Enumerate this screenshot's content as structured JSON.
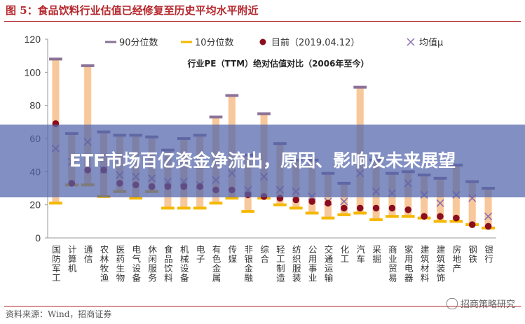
{
  "figure": {
    "title": "图 5：食品饮料行业估值已经修复至历史平均水平附近",
    "source": "资料来源：Wind，招商证券",
    "watermark": "招商策略研究"
  },
  "banner": {
    "text": "ETF市场百亿资金净流出，原因、影响及未来展望"
  },
  "chart_data": {
    "type": "range-dot",
    "title": "行业PE（TTM）绝对估值对比（2006年至今）",
    "ylim": [
      0,
      120
    ],
    "yticks": [
      0,
      20,
      40,
      60,
      80,
      100,
      120
    ],
    "legend_position": "top",
    "legend": [
      "90分位数",
      "10分位数",
      "目前（2019.04.12）",
      "均值μ"
    ],
    "colors": {
      "p90": "#8a7196",
      "p10": "#f5b800",
      "bar": "#f8c89a",
      "current": "#8b0d1e",
      "mean": "#8a6fb0"
    },
    "categories": [
      "国防军工",
      "计算机",
      "通信",
      "农林牧渔",
      "医药生物",
      "电气设备",
      "休闲服务",
      "食品饮料",
      "机械设备",
      "电子",
      "有色金属",
      "传媒",
      "非银金融",
      "综合",
      "轻工制造",
      "纺织服装",
      "公用事业",
      "交通运输",
      "化工",
      "汽车",
      "采掘",
      "商业贸易",
      "家用电器",
      "建筑材料",
      "建筑装饰",
      "房地产",
      "钢铁",
      "银行"
    ],
    "p90": [
      108,
      63,
      104,
      64,
      62,
      62,
      61,
      53,
      60,
      62,
      73,
      86,
      50,
      75,
      57,
      47,
      47,
      39,
      33,
      91,
      47,
      39,
      40,
      38,
      36,
      44,
      34,
      30
    ],
    "p10": [
      21,
      32,
      32,
      25,
      28,
      24,
      28,
      18,
      18,
      18,
      21,
      24,
      16,
      24,
      20,
      18,
      15,
      12,
      14,
      15,
      11,
      13,
      13,
      12,
      10,
      10,
      8,
      6
    ],
    "current": [
      69,
      33,
      41,
      41,
      33,
      32,
      31,
      31,
      31,
      31,
      29,
      29,
      26,
      25,
      24,
      23,
      22,
      21,
      18,
      18,
      18,
      18,
      17,
      13,
      13,
      12,
      8,
      7
    ],
    "mean": [
      54,
      46,
      58,
      41,
      38,
      37,
      36,
      34,
      34,
      32,
      35,
      39,
      29,
      37,
      29,
      28,
      25,
      22,
      22,
      39,
      28,
      27,
      33,
      26,
      21,
      26,
      24,
      13
    ]
  }
}
